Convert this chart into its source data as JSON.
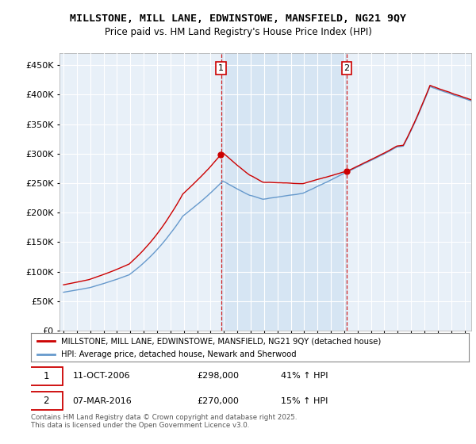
{
  "title": "MILLSTONE, MILL LANE, EDWINSTOWE, MANSFIELD, NG21 9QY",
  "subtitle": "Price paid vs. HM Land Registry's House Price Index (HPI)",
  "legend_line1": "MILLSTONE, MILL LANE, EDWINSTOWE, MANSFIELD, NG21 9QY (detached house)",
  "legend_line2": "HPI: Average price, detached house, Newark and Sherwood",
  "annotation1_label": "1",
  "annotation1_date": "11-OCT-2006",
  "annotation1_price": "£298,000",
  "annotation1_hpi": "41% ↑ HPI",
  "annotation2_label": "2",
  "annotation2_date": "07-MAR-2016",
  "annotation2_price": "£270,000",
  "annotation2_hpi": "15% ↑ HPI",
  "footer": "Contains HM Land Registry data © Crown copyright and database right 2025.\nThis data is licensed under the Open Government Licence v3.0.",
  "red_color": "#cc0000",
  "blue_color": "#6699cc",
  "shade_color": "#dce9f8",
  "plot_bg": "#e8f0f8",
  "ylim": [
    0,
    470000
  ],
  "yticks": [
    0,
    50000,
    100000,
    150000,
    200000,
    250000,
    300000,
    350000,
    400000,
    450000
  ],
  "sale1_x": 2006.78,
  "sale1_y": 298000,
  "sale2_x": 2016.18,
  "sale2_y": 270000,
  "xmin": 1994.7,
  "xmax": 2025.5
}
